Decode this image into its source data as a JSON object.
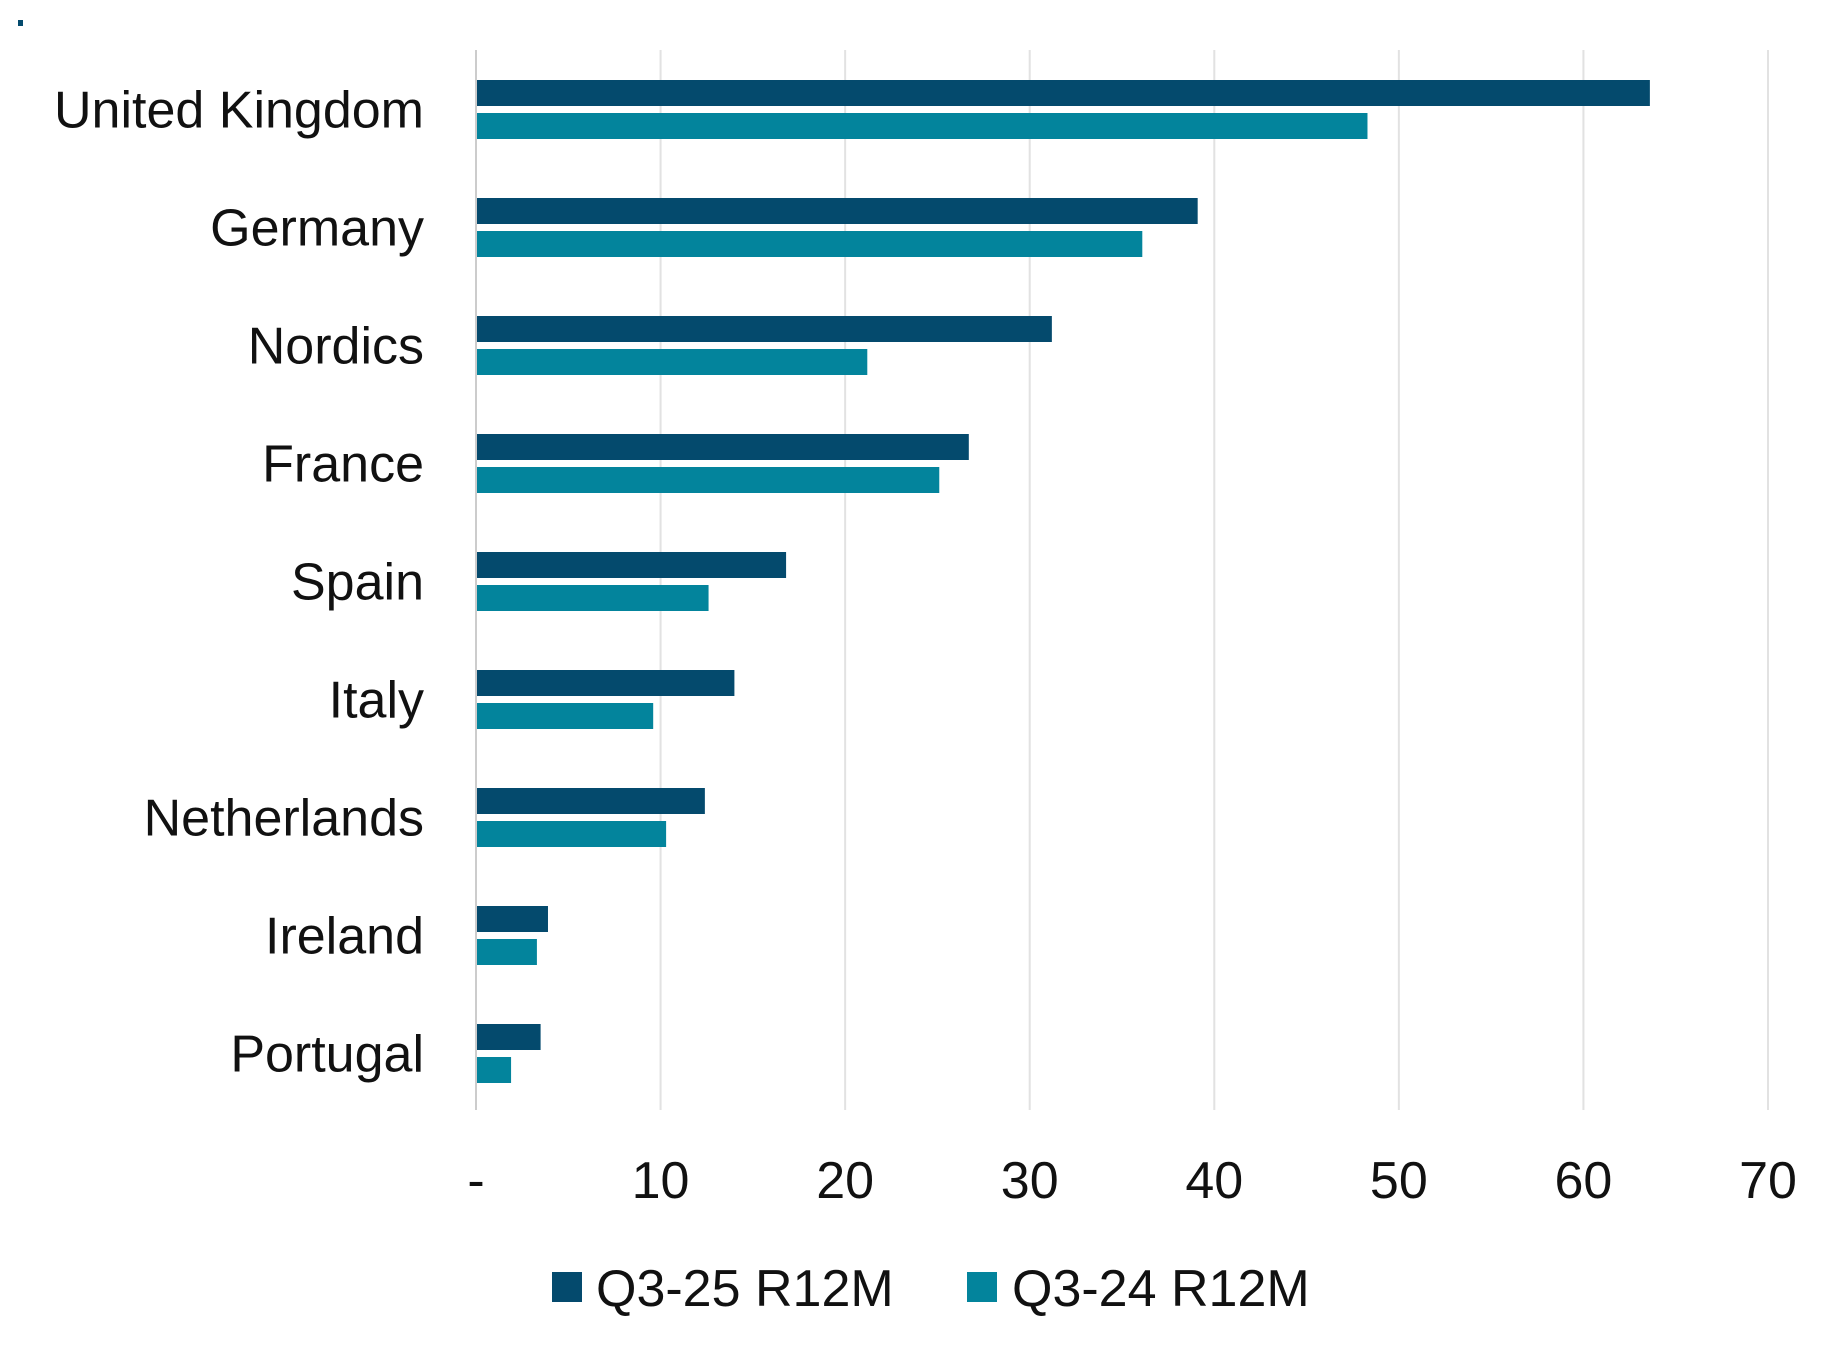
{
  "chart_data": {
    "type": "bar",
    "orientation": "horizontal",
    "categories": [
      "United Kingdom",
      "Germany",
      "Nordics",
      "France",
      "Spain",
      "Italy",
      "Netherlands",
      "Ireland",
      "Portugal"
    ],
    "series": [
      {
        "name": "Q3-25 R12M",
        "color": "#044a6d",
        "values": [
          63.6,
          39.1,
          31.2,
          26.7,
          16.8,
          14.0,
          12.4,
          3.9,
          3.5
        ]
      },
      {
        "name": "Q3-24 R12M",
        "color": "#03849c",
        "values": [
          48.3,
          36.1,
          21.2,
          25.1,
          12.6,
          9.6,
          10.3,
          3.3,
          1.9
        ]
      }
    ],
    "xlim": [
      0,
      70
    ],
    "xticks": [
      0,
      10,
      20,
      30,
      40,
      50,
      60,
      70
    ],
    "xtick_labels": [
      "-",
      "10",
      "20",
      "30",
      "40",
      "50",
      "60",
      "70"
    ],
    "grid": true,
    "legend_position": "bottom",
    "title": "",
    "xlabel": "",
    "ylabel": ""
  }
}
